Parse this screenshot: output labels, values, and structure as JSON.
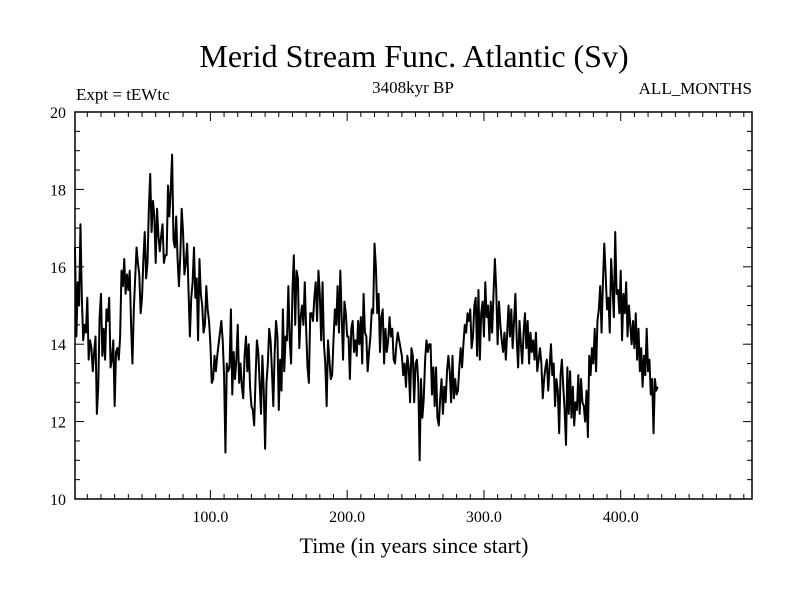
{
  "chart_data": {
    "type": "line",
    "title": "Merid Stream Func. Atlantic (Sv)",
    "subtitle_left": "Expt = tEWtc",
    "subtitle_center": "3408kyr BP",
    "subtitle_right": "ALL_MONTHS",
    "xlabel": "Time (in years since start)",
    "ylabel": "",
    "xlim": [
      1,
      496
    ],
    "ylim": [
      10,
      20
    ],
    "x_ticks": [
      100,
      200,
      300,
      400
    ],
    "x_tick_labels": [
      "100.0",
      "200.0",
      "300.0",
      "400.0"
    ],
    "y_ticks": [
      10,
      12,
      14,
      16,
      18,
      20
    ],
    "y_tick_labels": [
      "10",
      "12",
      "14",
      "16",
      "18",
      "20"
    ],
    "line_color": "#000000",
    "series": [
      {
        "name": "Merid Stream Func. Atlantic",
        "x_start": 1,
        "x_step": 1,
        "values": [
          16.5,
          14.2,
          15.6,
          15.0,
          17.1,
          15.2,
          14.1,
          14.5,
          14.3,
          15.2,
          13.6,
          14.1,
          13.9,
          13.3,
          13.8,
          14.2,
          12.2,
          12.9,
          14.7,
          15.3,
          13.7,
          14.4,
          13.6,
          14.9,
          14.6,
          15.2,
          13.4,
          13.6,
          14.1,
          12.4,
          13.8,
          13.9,
          13.6,
          14.2,
          15.9,
          15.5,
          16.2,
          15.3,
          15.8,
          15.4,
          15.9,
          14.5,
          13.5,
          14.9,
          15.7,
          16.5,
          16.1,
          15.8,
          14.8,
          15.2,
          16.2,
          16.9,
          15.7,
          16.1,
          17.5,
          18.4,
          16.9,
          17.7,
          17.3,
          16.1,
          17.5,
          16.8,
          16.4,
          16.8,
          17.1,
          16.1,
          16.3,
          16.3,
          18.1,
          17.3,
          18.0,
          18.9,
          16.7,
          16.5,
          17.3,
          16.2,
          15.5,
          16.3,
          17.5,
          16.9,
          15.8,
          16.1,
          16.6,
          15.4,
          14.2,
          15.2,
          15.6,
          16.5,
          15.2,
          15.7,
          14.1,
          16.2,
          15.3,
          15.0,
          14.3,
          14.5,
          15.5,
          14.9,
          14.6,
          14.0,
          13.0,
          13.1,
          13.7,
          13.3,
          13.7,
          14.0,
          14.3,
          14.6,
          14.1,
          13.2,
          11.2,
          13.5,
          13.3,
          13.4,
          14.9,
          12.7,
          13.8,
          13.1,
          13.6,
          14.5,
          13.0,
          13.5,
          12.9,
          12.6,
          13.7,
          14.2,
          13.3,
          14.0,
          12.9,
          12.4,
          12.3,
          11.9,
          13.1,
          14.1,
          13.8,
          13.0,
          12.2,
          13.7,
          12.8,
          11.3,
          13.0,
          13.5,
          14.4,
          14.1,
          13.3,
          12.4,
          13.8,
          14.6,
          14.2,
          12.3,
          13.6,
          12.8,
          14.9,
          13.3,
          14.2,
          14.1,
          15.5,
          14.1,
          13.5,
          15.4,
          16.3,
          14.5,
          15.9,
          15.7,
          13.9,
          14.7,
          15.0,
          14.5,
          15.6,
          14.4,
          13.4,
          13.0,
          14.8,
          14.8,
          14.6,
          15.2,
          15.6,
          14.6,
          15.9,
          15.3,
          14.1,
          15.6,
          14.0,
          13.5,
          12.4,
          14.1,
          13.6,
          13.1,
          13.2,
          14.1,
          14.9,
          14.5,
          15.5,
          14.3,
          15.9,
          14.7,
          13.6,
          15.1,
          14.8,
          14.2,
          14.2,
          13.1,
          14.4,
          14.6,
          13.8,
          14.1,
          13.7,
          14.6,
          14.0,
          14.7,
          13.5,
          15.3,
          14.3,
          14.2,
          13.3,
          13.8,
          14.2,
          14.9,
          14.8,
          16.6,
          16.0,
          14.8,
          15.3,
          13.8,
          14.7,
          14.9,
          13.5,
          14.4,
          13.8,
          14.1,
          14.7,
          14.2,
          14.4,
          13.6,
          13.5,
          14.0,
          14.3,
          14.1,
          13.9,
          13.7,
          13.2,
          13.5,
          12.9,
          13.7,
          13.4,
          12.5,
          13.9,
          13.7,
          12.5,
          13.5,
          13.6,
          13.0,
          11.0,
          13.1,
          12.1,
          12.6,
          13.6,
          14.1,
          13.8,
          14.0,
          14.0,
          12.7,
          13.4,
          12.4,
          13.4,
          12.1,
          11.9,
          12.6,
          13.1,
          12.2,
          12.9,
          12.5,
          13.3,
          13.7,
          13.3,
          12.5,
          13.7,
          12.6,
          13.1,
          12.7,
          12.8,
          13.4,
          13.9,
          13.4,
          14.0,
          14.5,
          14.3,
          14.8,
          14.6,
          14.9,
          13.9,
          14.2,
          15.0,
          15.2,
          13.7,
          15.4,
          13.6,
          14.8,
          15.1,
          14.2,
          15.6,
          14.7,
          15.0,
          14.1,
          15.1,
          14.3,
          15.3,
          16.2,
          15.4,
          14.0,
          15.1,
          14.5,
          14.1,
          13.8,
          14.3,
          13.6,
          14.3,
          15.0,
          14.2,
          14.9,
          13.9,
          14.6,
          15.3,
          14.1,
          13.4,
          14.6,
          14.0,
          13.5,
          14.3,
          14.8,
          13.9,
          14.6,
          13.5,
          14.3,
          13.8,
          14.1,
          13.6,
          14.3,
          13.3,
          13.6,
          13.9,
          13.5,
          12.6,
          13.1,
          13.4,
          13.6,
          12.8,
          13.4,
          14.0,
          13.2,
          13.5,
          12.4,
          13.1,
          12.8,
          11.7,
          13.2,
          13.6,
          12.9,
          12.3,
          11.4,
          13.4,
          12.2,
          13.3,
          12.1,
          12.9,
          11.9,
          12.5,
          12.3,
          13.2,
          12.2,
          13.1,
          12.5,
          12.4,
          12.0,
          12.8,
          11.6,
          13.7,
          13.2,
          13.9,
          13.5,
          14.4,
          13.3,
          14.6,
          14.9,
          15.5,
          14.3,
          15.6,
          16.6,
          15.8,
          14.9,
          15.2,
          14.3,
          16.2,
          15.5,
          14.7,
          16.9,
          15.3,
          15.4,
          14.8,
          15.9,
          14.1,
          15.3,
          14.8,
          15.6,
          14.2,
          15.0,
          14.5,
          14.0,
          14.6,
          13.9,
          14.8,
          13.6,
          14.4,
          13.3,
          13.9,
          12.9,
          13.7,
          13.2,
          14.4,
          13.3,
          13.6,
          12.7,
          13.1,
          11.7,
          13.1,
          12.8,
          12.9
        ]
      }
    ]
  }
}
